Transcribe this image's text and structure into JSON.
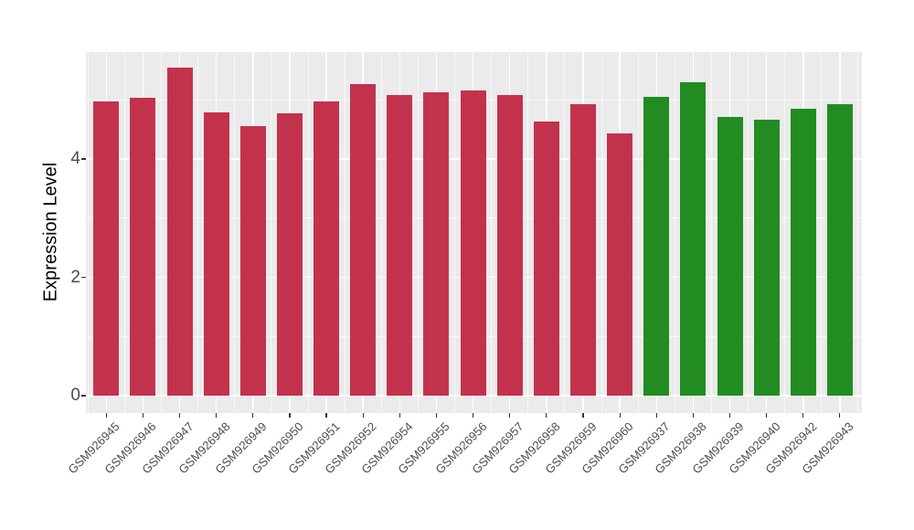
{
  "chart_data": {
    "type": "bar",
    "title": "",
    "xlabel": "",
    "ylabel": "Expression Level",
    "ylim": [
      0,
      5.81
    ],
    "yticks": [
      0,
      2,
      4
    ],
    "ytick_labels": [
      "0",
      "2",
      "4"
    ],
    "yticks_minor": [
      1,
      3,
      5
    ],
    "grid": "on",
    "legend_position": "none",
    "categories": [
      "GSM926945",
      "GSM926946",
      "GSM926947",
      "GSM926948",
      "GSM926949",
      "GSM926950",
      "GSM926951",
      "GSM926952",
      "GSM926954",
      "GSM926955",
      "GSM926956",
      "GSM926957",
      "GSM926958",
      "GSM926959",
      "GSM926960",
      "GSM926937",
      "GSM926938",
      "GSM926939",
      "GSM926940",
      "GSM926942",
      "GSM926943"
    ],
    "values": [
      4.98,
      5.03,
      5.55,
      4.78,
      4.56,
      4.77,
      4.97,
      5.26,
      5.08,
      5.13,
      5.16,
      5.08,
      4.64,
      4.92,
      4.43,
      5.05,
      5.3,
      4.71,
      4.67,
      4.85,
      4.92
    ],
    "bar_color_keys": [
      "red",
      "red",
      "red",
      "red",
      "red",
      "red",
      "red",
      "red",
      "red",
      "red",
      "red",
      "red",
      "red",
      "red",
      "red",
      "green",
      "green",
      "green",
      "green",
      "green",
      "green"
    ],
    "colors": {
      "red": "#c3324d",
      "green": "#228c22",
      "panel_background": "#ebebeb",
      "page_background": "#ffffff",
      "gridline": "#ffffff",
      "tick_mark": "#333333",
      "tick_label": "#4d4d4d",
      "axis_title": "#000000"
    }
  }
}
